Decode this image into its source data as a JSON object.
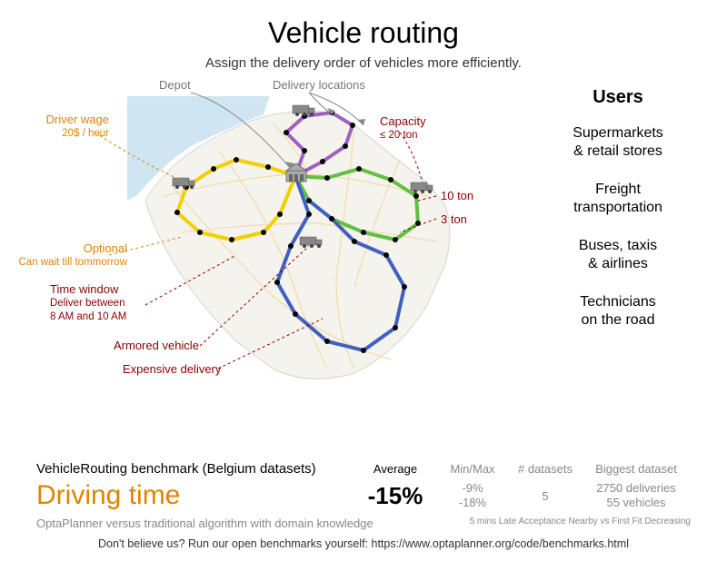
{
  "title": "Vehicle routing",
  "subtitle": "Assign the delivery order of vehicles more efficiently.",
  "map": {
    "background_fill": "#f5f3ed",
    "water_fill": "#cfe6f2",
    "road_color": "#f0d9a0",
    "routes": {
      "yellow": "#f0d000",
      "purple": "#a060c0",
      "green": "#60c040",
      "blue": "#4060c0"
    }
  },
  "annotations": {
    "depot": {
      "label": "Depot"
    },
    "delivery_locations": {
      "label": "Delivery locations"
    },
    "driver_wage": {
      "label": "Driver wage",
      "sub": "20$ / hour"
    },
    "capacity": {
      "label": "Capacity",
      "sub": "≤ 20 ton"
    },
    "ten_ton": {
      "label": "10 ton"
    },
    "three_ton": {
      "label": "3 ton"
    },
    "optional": {
      "label": "Optional",
      "sub": "Can wait till tommorrow"
    },
    "time_window": {
      "label": "Time window",
      "sub1": "Deliver between",
      "sub2": "8 AM and 10 AM"
    },
    "armored": {
      "label": "Armored vehicle"
    },
    "expensive": {
      "label": "Expensive delivery"
    }
  },
  "users": {
    "title": "Users",
    "items": [
      "Supermarkets\n& retail stores",
      "Freight\ntransportation",
      "Buses, taxis\n& airlines",
      "Technicians\non the road"
    ]
  },
  "benchmark": {
    "title": "VehicleRouting benchmark (Belgium datasets)",
    "metric": "Driving time",
    "columns": {
      "average": "Average",
      "minmax": "Min/Max",
      "datasets": "# datasets",
      "biggest": "Biggest dataset"
    },
    "values": {
      "average": "-15%",
      "min": "-9%",
      "max": "-18%",
      "datasets": "5",
      "biggest1": "2750 deliveries",
      "biggest2": "55 vehicles"
    },
    "subtitle_left": "OptaPlanner versus traditional algorithm with domain knowledge",
    "subtitle_right": "5 mins Late Acceptance Nearby vs First Fit Decreasing"
  },
  "footer": "Don't believe us? Run our open benchmarks yourself: https://www.optaplanner.org/code/benchmarks.html",
  "colors": {
    "orange": "#e08400",
    "darkred": "#8b0000",
    "gray": "#777777"
  }
}
